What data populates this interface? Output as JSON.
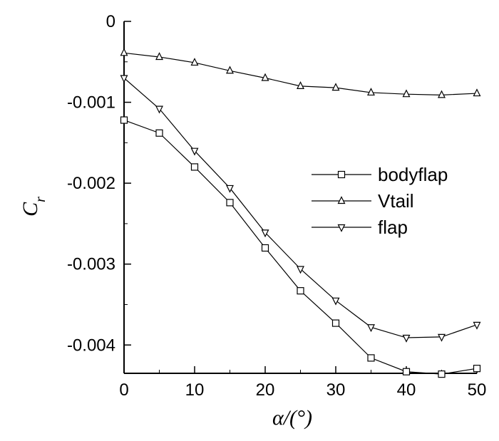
{
  "chart_data": {
    "type": "line",
    "title": "",
    "xlabel": "α/(°)",
    "ylabel": "C",
    "ylabel_subscript": "r",
    "x": [
      0,
      5,
      10,
      15,
      20,
      25,
      30,
      35,
      40,
      45,
      50
    ],
    "xlim": [
      0,
      50
    ],
    "ylim": [
      -0.00435,
      0
    ],
    "xticks": [
      0,
      10,
      20,
      30,
      40,
      50
    ],
    "xtick_labels": [
      "0",
      "10",
      "20",
      "30",
      "40",
      "50"
    ],
    "yticks": [
      0,
      -0.001,
      -0.002,
      -0.003,
      -0.004
    ],
    "ytick_labels": [
      "0",
      "-0.001",
      "-0.002",
      "-0.003",
      "-0.004"
    ],
    "grid": false,
    "legend_position": "right",
    "series": [
      {
        "name": "bodyflap",
        "marker": "square",
        "values": [
          -0.00122,
          -0.00138,
          -0.0018,
          -0.00224,
          -0.0028,
          -0.00333,
          -0.00373,
          -0.00416,
          -0.00433,
          -0.00436,
          -0.00429
        ]
      },
      {
        "name": "Vtail",
        "marker": "triangle-up",
        "values": [
          -0.00039,
          -0.00044,
          -0.00051,
          -0.00061,
          -0.0007,
          -0.0008,
          -0.00082,
          -0.00088,
          -0.0009,
          -0.00091,
          -0.00089
        ]
      },
      {
        "name": "flap",
        "marker": "triangle-down",
        "values": [
          -0.0007,
          -0.00108,
          -0.0016,
          -0.00206,
          -0.00261,
          -0.00306,
          -0.00345,
          -0.00378,
          -0.00391,
          -0.0039,
          -0.00375
        ]
      }
    ]
  }
}
